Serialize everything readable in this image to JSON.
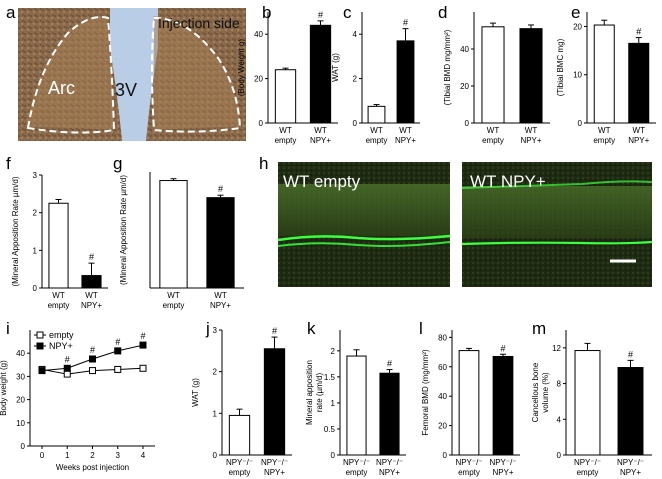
{
  "panel_letters": [
    "a",
    "b",
    "c",
    "d",
    "e",
    "f",
    "g",
    "h",
    "i",
    "j",
    "k",
    "l",
    "m"
  ],
  "micrograph_a": {
    "left_region": "Arc",
    "right_region": "Injection side",
    "center_region": "3V"
  },
  "micrograph_h": {
    "left_label": "WT empty",
    "right_label": "WT NPY+"
  },
  "colors": {
    "empty": "#ffffff",
    "npy": "#000000",
    "axis": "#000000",
    "tissue_a": "#8a6a4a",
    "ventricle": "#b9cde6",
    "fluorescence": "#3dff3d"
  },
  "chart_data": [
    {
      "panel": "b",
      "type": "bar",
      "ylabel": "(Body Weight g)",
      "ylim": [
        0,
        50
      ],
      "yticks": [
        0,
        20,
        40
      ],
      "categories": [
        [
          "WT",
          "empty"
        ],
        [
          "WT",
          "NPY+"
        ]
      ],
      "values": [
        24,
        44
      ],
      "errors": [
        0.7,
        2
      ],
      "sig": [
        "",
        "#"
      ]
    },
    {
      "panel": "c",
      "type": "bar",
      "ylabel": "WAT (g)",
      "ylim": [
        0,
        5
      ],
      "yticks": [
        0,
        2,
        4
      ],
      "categories": [
        [
          "WT",
          "empty"
        ],
        [
          "WT",
          "NPY+"
        ]
      ],
      "values": [
        0.75,
        3.7
      ],
      "errors": [
        0.08,
        0.55
      ],
      "sig": [
        "",
        "#"
      ]
    },
    {
      "panel": "d",
      "type": "bar",
      "ylabel": "(Tibial BMD mg/mm²)",
      "ylim": [
        0,
        60
      ],
      "yticks": [
        0,
        20,
        40
      ],
      "categories": [
        [
          "WT",
          "empty"
        ],
        [
          "WT",
          "NPY+"
        ]
      ],
      "values": [
        52,
        51
      ],
      "errors": [
        2,
        2
      ],
      "sig": [
        "",
        ""
      ]
    },
    {
      "panel": "e",
      "type": "bar",
      "ylabel": "(Tibial BMC mg)",
      "ylim": [
        0,
        23
      ],
      "yticks": [
        0,
        10,
        20
      ],
      "categories": [
        [
          "WT",
          "empty"
        ],
        [
          "WT",
          "NPY+"
        ]
      ],
      "values": [
        20.3,
        16.5
      ],
      "errors": [
        1,
        1.2
      ],
      "sig": [
        "",
        "#"
      ]
    },
    {
      "panel": "f",
      "type": "bar",
      "ylabel": "(Mineral Apposition Rate µm/d)",
      "ylim": [
        0,
        3
      ],
      "yticks": [
        0,
        1,
        2,
        3
      ],
      "categories": [
        [
          "WT",
          "empty"
        ],
        [
          "WT",
          "NPY+"
        ]
      ],
      "values": [
        2.25,
        0.33
      ],
      "errors": [
        0.1,
        0.33
      ],
      "sig": [
        "",
        "#"
      ]
    },
    {
      "panel": "g",
      "type": "bar",
      "ylabel": "(Mineral Apposition Rate µm/d)",
      "ylim": [
        0,
        1.9
      ],
      "yticks": [],
      "categories": [
        [
          "WT",
          "empty"
        ],
        [
          "WT",
          "NPY+"
        ]
      ],
      "values": [
        1.76,
        1.48
      ],
      "errors": [
        0.03,
        0.04
      ],
      "sig": [
        "",
        "#"
      ]
    },
    {
      "panel": "i",
      "type": "line",
      "ylabel": "Body weight (g)",
      "xlabel": "Weeks post injection",
      "ylim": [
        0,
        50
      ],
      "yticks": [
        0,
        10,
        20,
        30,
        40
      ],
      "x": [
        0,
        1,
        2,
        3,
        4
      ],
      "series": [
        {
          "name": "empty",
          "values": [
            33,
            31,
            32.5,
            33,
            33.5
          ]
        },
        {
          "name": "NPY+",
          "values": [
            32.5,
            33.5,
            37.5,
            41,
            43.5
          ]
        }
      ],
      "sig": [
        "",
        "#",
        "#",
        "#",
        "#"
      ],
      "legend": "top-left"
    },
    {
      "panel": "j",
      "type": "bar",
      "ylabel": "WAT (g)",
      "ylim": [
        0,
        3
      ],
      "yticks": [
        0,
        1,
        2,
        3
      ],
      "categories": [
        [
          "NPY⁻/⁻",
          "empty"
        ],
        [
          "NPY⁻/⁻",
          "NPY+"
        ]
      ],
      "values": [
        0.95,
        2.55
      ],
      "errors": [
        0.15,
        0.28
      ],
      "sig": [
        "",
        "#"
      ]
    },
    {
      "panel": "k",
      "type": "bar",
      "ylabel": "Mineral apposition rate (µm/d)",
      "ylim": [
        0,
        2.4
      ],
      "yticks": [
        0,
        0.5,
        1,
        1.5,
        2
      ],
      "categories": [
        [
          "NPY⁻/⁻",
          "empty"
        ],
        [
          "NPY⁻/⁻",
          "NPY+"
        ]
      ],
      "values": [
        1.9,
        1.57
      ],
      "errors": [
        0.12,
        0.07
      ],
      "sig": [
        "",
        "#"
      ]
    },
    {
      "panel": "l",
      "type": "bar",
      "ylabel": "Femoral BMD (mg/mm²)",
      "ylim": [
        0,
        85
      ],
      "yticks": [
        0,
        20,
        40,
        60,
        80
      ],
      "categories": [
        [
          "NPY⁻/⁻",
          "empty"
        ],
        [
          "NPY⁻/⁻",
          "NPY+"
        ]
      ],
      "values": [
        71,
        67
      ],
      "errors": [
        1.5,
        1.5
      ],
      "sig": [
        "",
        "#"
      ]
    },
    {
      "panel": "m",
      "type": "bar",
      "ylabel": "Cancellous bone volume (%)",
      "ylim": [
        0,
        14
      ],
      "yticks": [
        0,
        4,
        8,
        12
      ],
      "categories": [
        [
          "NPY⁻/⁻",
          "empty"
        ],
        [
          "NPY⁻/⁻",
          "NPY+"
        ]
      ],
      "values": [
        11.7,
        9.8
      ],
      "errors": [
        0.8,
        0.8
      ],
      "sig": [
        "",
        "#"
      ]
    }
  ]
}
